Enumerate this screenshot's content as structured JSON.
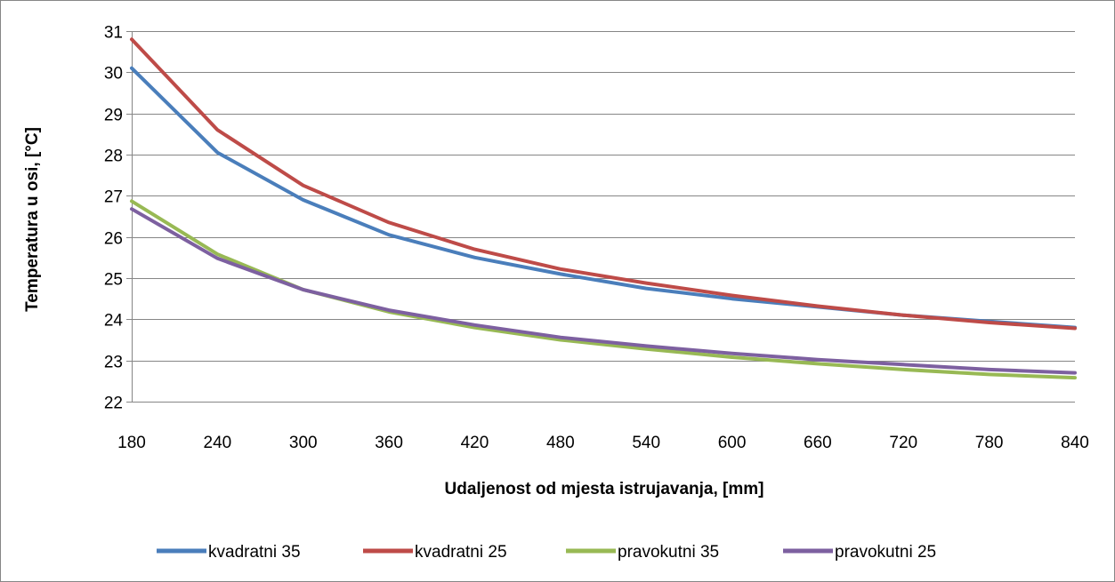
{
  "chart_data": {
    "type": "line",
    "title": "",
    "xlabel": "Udaljenost od mjesta istrujavanja,  [mm]",
    "ylabel": "Temperatura u osi, [°C]",
    "x": [
      180,
      240,
      300,
      360,
      420,
      480,
      540,
      600,
      660,
      720,
      780,
      840
    ],
    "ylim": [
      22,
      31
    ],
    "yticks": [
      22,
      23,
      24,
      25,
      26,
      27,
      28,
      29,
      30,
      31
    ],
    "grid": true,
    "legend_position": "bottom",
    "series": [
      {
        "name": "kvadratni 35",
        "color": "#4a7ebb",
        "values": [
          30.1,
          28.05,
          26.9,
          26.05,
          25.5,
          25.1,
          24.75,
          24.5,
          24.3,
          24.1,
          23.95,
          23.8
        ]
      },
      {
        "name": "kvadratni 25",
        "color": "#be4b48",
        "values": [
          30.8,
          28.6,
          27.25,
          26.35,
          25.7,
          25.22,
          24.88,
          24.58,
          24.32,
          24.1,
          23.92,
          23.78
        ]
      },
      {
        "name": "pravokutni 35",
        "color": "#98b954",
        "values": [
          26.87,
          25.58,
          24.72,
          24.18,
          23.8,
          23.5,
          23.28,
          23.08,
          22.92,
          22.78,
          22.66,
          22.58
        ]
      },
      {
        "name": "pravokutni 25",
        "color": "#7d60a0",
        "values": [
          26.68,
          25.48,
          24.72,
          24.22,
          23.86,
          23.56,
          23.35,
          23.17,
          23.02,
          22.9,
          22.78,
          22.7
        ]
      }
    ]
  }
}
